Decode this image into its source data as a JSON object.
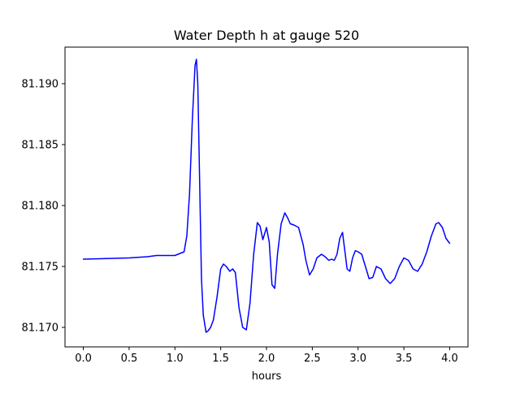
{
  "chart_data": {
    "type": "line",
    "title": "Water Depth h at gauge 520",
    "xlabel": "hours",
    "ylabel": "",
    "xlim": [
      -0.2,
      4.2
    ],
    "ylim": [
      81.1684,
      81.193
    ],
    "xticks": [
      0.0,
      0.5,
      1.0,
      1.5,
      2.0,
      2.5,
      3.0,
      3.5,
      4.0
    ],
    "xtick_labels": [
      "0.0",
      "0.5",
      "1.0",
      "1.5",
      "2.0",
      "2.5",
      "3.0",
      "3.5",
      "4.0"
    ],
    "yticks": [
      81.17,
      81.175,
      81.18,
      81.185,
      81.19
    ],
    "ytick_labels": [
      "81.170",
      "81.175",
      "81.180",
      "81.185",
      "81.190"
    ],
    "grid": false,
    "legend": "none",
    "series": [
      {
        "color": "#0000ff",
        "x": [
          0.0,
          0.5,
          0.7,
          0.8,
          1.0,
          1.1,
          1.13,
          1.16,
          1.19,
          1.22,
          1.235,
          1.25,
          1.27,
          1.29,
          1.31,
          1.34,
          1.36,
          1.39,
          1.42,
          1.46,
          1.5,
          1.53,
          1.56,
          1.6,
          1.63,
          1.66,
          1.7,
          1.74,
          1.78,
          1.82,
          1.86,
          1.9,
          1.93,
          1.96,
          2.0,
          2.03,
          2.06,
          2.09,
          2.12,
          2.16,
          2.2,
          2.23,
          2.26,
          2.3,
          2.35,
          2.4,
          2.43,
          2.47,
          2.51,
          2.55,
          2.6,
          2.64,
          2.68,
          2.71,
          2.74,
          2.77,
          2.8,
          2.83,
          2.86,
          2.88,
          2.91,
          2.94,
          2.97,
          3.0,
          3.04,
          3.08,
          3.12,
          3.16,
          3.2,
          3.25,
          3.3,
          3.35,
          3.4,
          3.45,
          3.5,
          3.55,
          3.6,
          3.65,
          3.7,
          3.75,
          3.8,
          3.85,
          3.88,
          3.92,
          3.96,
          4.0
        ],
        "values": [
          81.1756,
          81.1757,
          81.1758,
          81.1759,
          81.1759,
          81.1762,
          81.1775,
          81.181,
          81.187,
          81.1915,
          81.192,
          81.19,
          81.182,
          81.174,
          81.171,
          81.1696,
          81.1697,
          81.17,
          81.1706,
          81.1725,
          81.1748,
          81.1752,
          81.175,
          81.1746,
          81.1748,
          81.1745,
          81.1716,
          81.17,
          81.1698,
          81.172,
          81.176,
          81.1786,
          81.1783,
          81.1772,
          81.1782,
          81.177,
          81.1735,
          81.1732,
          81.176,
          81.1785,
          81.1794,
          81.179,
          81.1785,
          81.1784,
          81.1782,
          81.1768,
          81.1755,
          81.1743,
          81.1748,
          81.1757,
          81.176,
          81.1758,
          81.1755,
          81.1756,
          81.1755,
          81.176,
          81.1773,
          81.1778,
          81.176,
          81.1748,
          81.1746,
          81.1757,
          81.1763,
          81.1762,
          81.176,
          81.175,
          81.174,
          81.1741,
          81.175,
          81.1748,
          81.174,
          81.1736,
          81.174,
          81.175,
          81.1757,
          81.1755,
          81.1748,
          81.1746,
          81.1752,
          81.1762,
          81.1775,
          81.1785,
          81.1786,
          81.1782,
          81.1773,
          81.1769
        ]
      }
    ]
  }
}
